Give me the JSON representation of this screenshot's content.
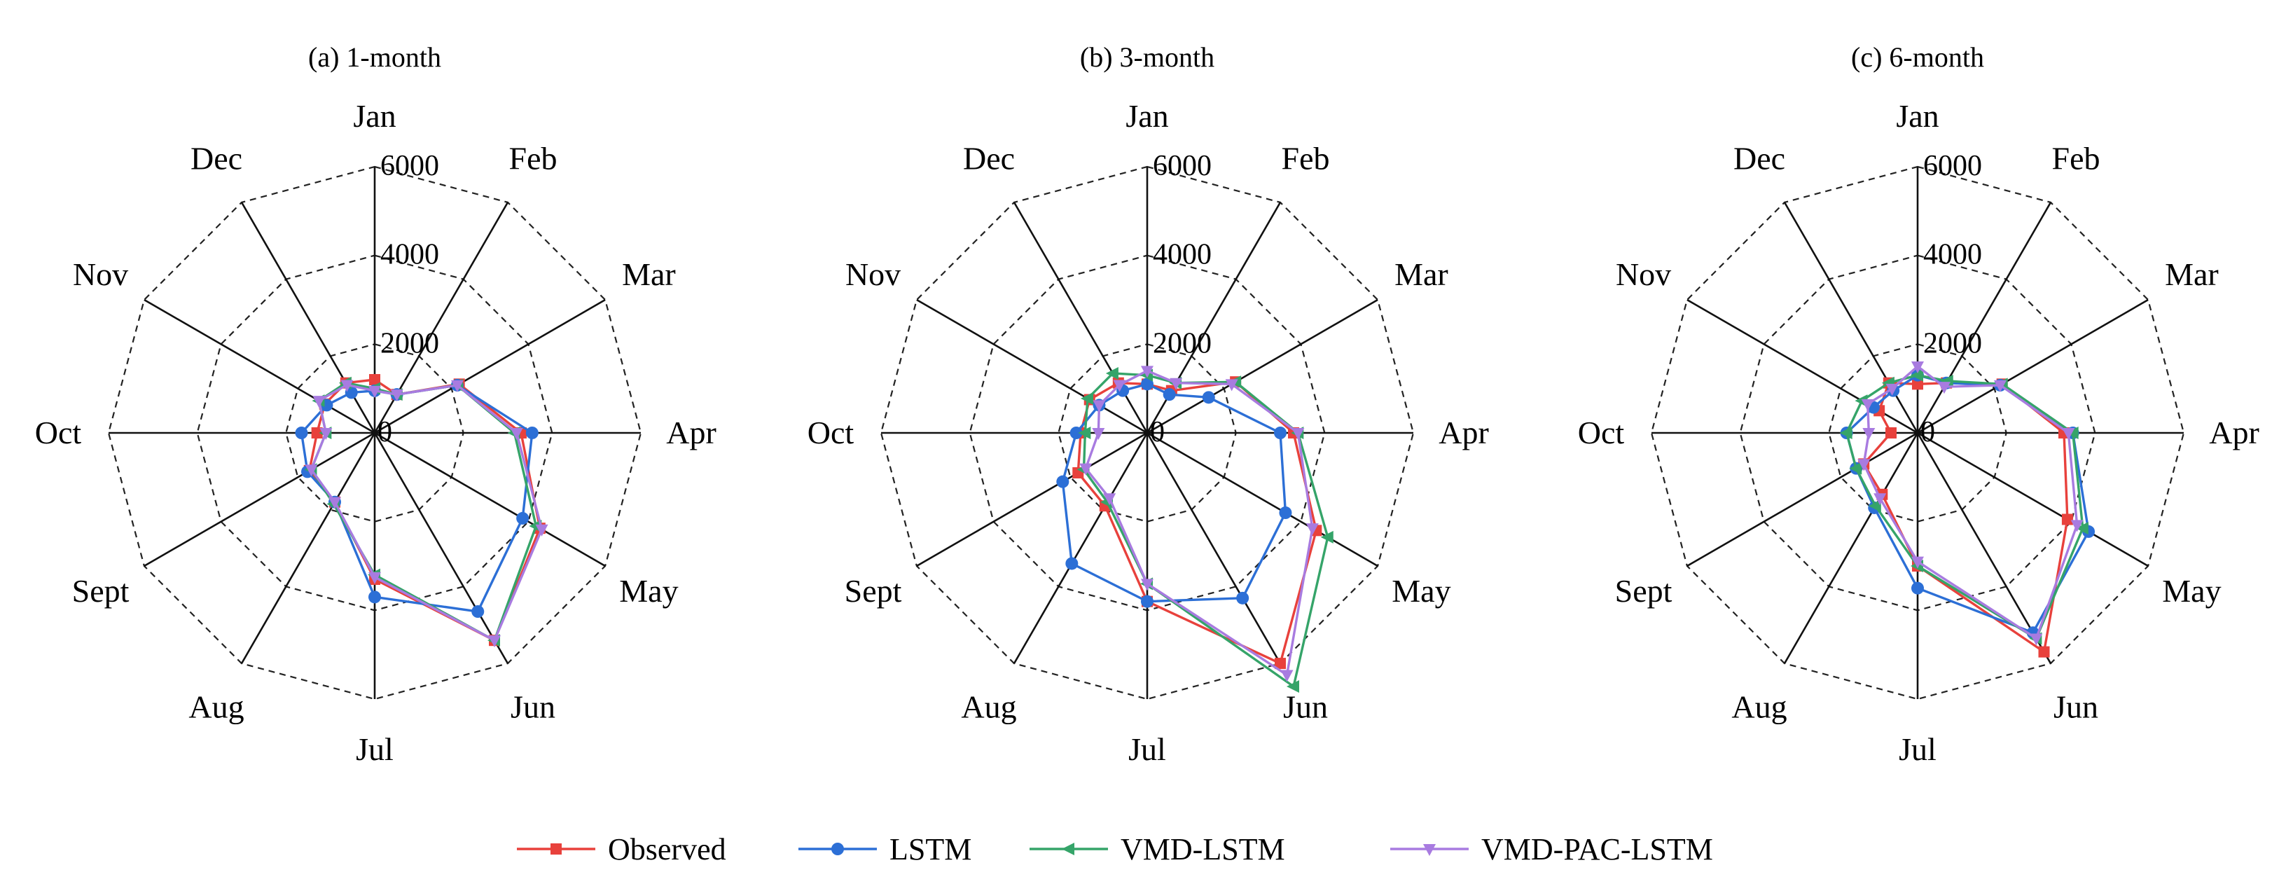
{
  "chart_data": [
    {
      "type": "radar",
      "title": "(a) 1-month",
      "categories": [
        "Jan",
        "Feb",
        "Mar",
        "Apr",
        "May",
        "Jun",
        "Jul",
        "Aug",
        "Sept",
        "Oct",
        "Nov",
        "Dec"
      ],
      "radial_ticks": [
        0,
        2000,
        4000,
        6000
      ],
      "radial_tick_labels": [
        "0",
        "2000",
        "4000",
        "6000"
      ],
      "rlim": [
        0,
        6000
      ],
      "series": [
        {
          "name": "Observed",
          "values": [
            1200,
            1000,
            2200,
            3300,
            4300,
            5400,
            3300,
            1800,
            1700,
            1300,
            1300,
            1300
          ]
        },
        {
          "name": "LSTM",
          "values": [
            950,
            1000,
            2150,
            3550,
            3850,
            4650,
            3700,
            1800,
            1750,
            1650,
            1250,
            1050
          ]
        },
        {
          "name": "VMD-LSTM",
          "values": [
            1000,
            1000,
            2150,
            3150,
            4200,
            5400,
            3200,
            1850,
            1650,
            1100,
            1450,
            1300
          ]
        },
        {
          "name": "VMD-PAC-LSTM",
          "values": [
            950,
            1000,
            2150,
            3200,
            4350,
            5400,
            3250,
            1800,
            1650,
            1100,
            1450,
            1250
          ]
        }
      ]
    },
    {
      "type": "radar",
      "title": "(b) 3-month",
      "categories": [
        "Jan",
        "Feb",
        "Mar",
        "Apr",
        "May",
        "Jun",
        "Jul",
        "Aug",
        "Sept",
        "Oct",
        "Nov",
        "Dec"
      ],
      "radial_ticks": [
        0,
        2000,
        4000,
        6000
      ],
      "radial_tick_labels": [
        "0",
        "2000",
        "4000",
        "6000"
      ],
      "rlim": [
        0,
        6000
      ],
      "series": [
        {
          "name": "Observed",
          "values": [
            1100,
            1100,
            2300,
            3300,
            4400,
            6000,
            3800,
            1900,
            1800,
            1500,
            1500,
            1300
          ]
        },
        {
          "name": "LSTM",
          "values": [
            1100,
            1000,
            1600,
            3000,
            3600,
            4300,
            3800,
            3400,
            2200,
            1600,
            1250,
            1100
          ]
        },
        {
          "name": "VMD-LSTM",
          "values": [
            1300,
            1300,
            2300,
            3400,
            4700,
            6600,
            3400,
            1800,
            1650,
            1400,
            1550,
            1550
          ]
        },
        {
          "name": "VMD-PAC-LSTM",
          "values": [
            1400,
            1300,
            2200,
            3400,
            4300,
            6300,
            3400,
            1700,
            1600,
            1100,
            1250,
            1250
          ]
        }
      ]
    },
    {
      "type": "radar",
      "title": "(c) 6-month",
      "categories": [
        "Jan",
        "Feb",
        "Mar",
        "Apr",
        "May",
        "Jun",
        "Jul",
        "Aug",
        "Sept",
        "Oct",
        "Nov",
        "Dec"
      ],
      "radial_ticks": [
        0,
        2000,
        4000,
        6000
      ],
      "radial_tick_labels": [
        "0",
        "2000",
        "4000",
        "6000"
      ],
      "rlim": [
        0,
        6000
      ],
      "series": [
        {
          "name": "Observed",
          "values": [
            1100,
            1300,
            2200,
            3300,
            3900,
            5700,
            3000,
            1600,
            1400,
            600,
            1000,
            1300
          ]
        },
        {
          "name": "LSTM",
          "values": [
            1300,
            1300,
            2150,
            3500,
            4450,
            5200,
            3500,
            1950,
            1600,
            1600,
            1150,
            1100
          ]
        },
        {
          "name": "VMD-LSTM",
          "values": [
            1300,
            1350,
            2200,
            3500,
            4300,
            5350,
            3000,
            1900,
            1600,
            1600,
            1450,
            1300
          ]
        },
        {
          "name": "VMD-PAC-LSTM",
          "values": [
            1500,
            1200,
            2150,
            3400,
            4150,
            5350,
            2900,
            1700,
            1400,
            1100,
            1300,
            1150
          ]
        }
      ]
    }
  ],
  "legend": {
    "placement": "bottom",
    "items": [
      {
        "name": "Observed",
        "color": "#e8413c",
        "marker": "square"
      },
      {
        "name": "LSTM",
        "color": "#2c6fd6",
        "marker": "circle"
      },
      {
        "name": "VMD-LSTM",
        "color": "#35a469",
        "marker": "triangle-left"
      },
      {
        "name": "VMD-PAC-LSTM",
        "color": "#a87be0",
        "marker": "triangle-down"
      }
    ]
  }
}
